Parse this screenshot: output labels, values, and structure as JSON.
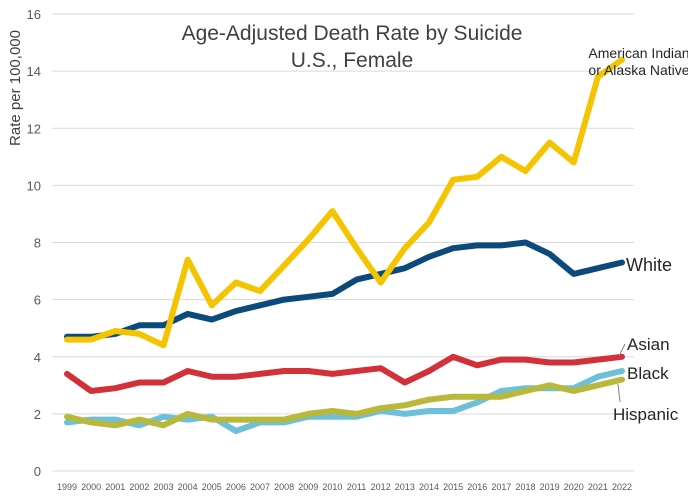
{
  "chart_data": {
    "type": "line",
    "title": "Age-Adjusted Death Rate by Suicide",
    "subtitle": "U.S., Female",
    "xlabel": "",
    "ylabel": "Rate per 100,000",
    "ylim": [
      0,
      16
    ],
    "yticks": [
      "0",
      "2",
      "4",
      "6",
      "8",
      "10",
      "12",
      "14",
      "16"
    ],
    "grid": "horizontal",
    "x": [
      "1999",
      "2000",
      "2001",
      "2002",
      "2003",
      "2004",
      "2005",
      "2006",
      "2007",
      "2008",
      "2009",
      "2010",
      "2011",
      "2012",
      "2013",
      "2014",
      "2015",
      "2016",
      "2017",
      "2018",
      "2019",
      "2020",
      "2021",
      "2022"
    ],
    "series": [
      {
        "name": "American Indian or Alaska Native",
        "name_lines": [
          "American Indian",
          "or Alaska Native"
        ],
        "color": "#F5C400",
        "values": [
          4.6,
          4.6,
          4.9,
          4.8,
          4.4,
          7.4,
          5.8,
          6.6,
          6.3,
          7.2,
          8.1,
          9.1,
          7.8,
          6.6,
          7.8,
          8.7,
          10.2,
          10.3,
          11.0,
          10.5,
          11.5,
          10.8,
          13.8,
          14.4
        ]
      },
      {
        "name": "White",
        "name_lines": [
          "White"
        ],
        "color": "#0B4A7A",
        "values": [
          4.7,
          4.7,
          4.8,
          5.1,
          5.1,
          5.5,
          5.3,
          5.6,
          5.8,
          6.0,
          6.1,
          6.2,
          6.7,
          6.9,
          7.1,
          7.5,
          7.8,
          7.9,
          7.9,
          8.0,
          7.6,
          6.9,
          7.1,
          7.3
        ]
      },
      {
        "name": "Asian",
        "name_lines": [
          "Asian"
        ],
        "color": "#D2313A",
        "values": [
          3.4,
          2.8,
          2.9,
          3.1,
          3.1,
          3.5,
          3.3,
          3.3,
          3.4,
          3.5,
          3.5,
          3.4,
          3.5,
          3.6,
          3.1,
          3.5,
          4.0,
          3.7,
          3.9,
          3.9,
          3.8,
          3.8,
          3.9,
          4.0
        ]
      },
      {
        "name": "Black",
        "name_lines": [
          "Black"
        ],
        "color": "#6EC0DA",
        "values": [
          1.7,
          1.8,
          1.8,
          1.6,
          1.9,
          1.8,
          1.9,
          1.4,
          1.7,
          1.7,
          1.9,
          1.9,
          1.9,
          2.1,
          2.0,
          2.1,
          2.1,
          2.4,
          2.8,
          2.9,
          2.9,
          2.9,
          3.3,
          3.5
        ]
      },
      {
        "name": "Hispanic",
        "name_lines": [
          "Hispanic"
        ],
        "color": "#B8B83A",
        "values": [
          1.9,
          1.7,
          1.6,
          1.8,
          1.6,
          2.0,
          1.8,
          1.8,
          1.8,
          1.8,
          2.0,
          2.1,
          2.0,
          2.2,
          2.3,
          2.5,
          2.6,
          2.6,
          2.6,
          2.8,
          3.0,
          2.8,
          3.0,
          3.2
        ]
      }
    ]
  }
}
